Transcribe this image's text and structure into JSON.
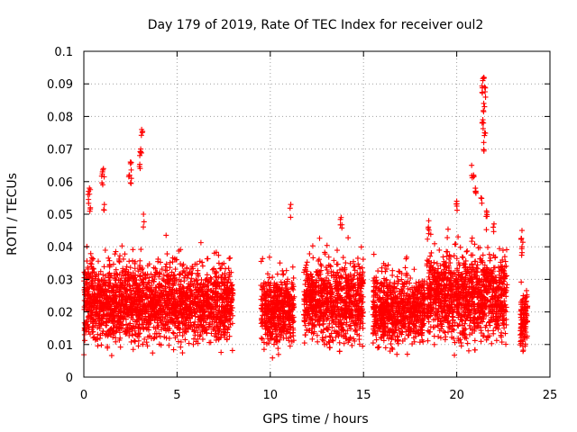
{
  "chart_data": {
    "type": "scatter",
    "title": "Day 179 of 2019, Rate Of TEC Index for receiver oul2",
    "xlabel": "GPS time / hours",
    "ylabel": "ROTI / TECUs",
    "xlim": [
      0,
      25
    ],
    "ylim": [
      0,
      0.1
    ],
    "xticks": [
      "0",
      "5",
      "10",
      "15",
      "20",
      "25"
    ],
    "yticks": [
      "0",
      "0.01",
      "0.02",
      "0.03",
      "0.04",
      "0.05",
      "0.06",
      "0.07",
      "0.08",
      "0.09",
      "0.1"
    ],
    "grid": true,
    "marker": "+",
    "series": [
      {
        "name": "ROTI",
        "color": "#ff0000",
        "segments": [
          {
            "t0": 0.0,
            "t1": 8.0,
            "base": 0.015,
            "spread": 0.018
          },
          {
            "t0": 9.5,
            "t1": 11.3,
            "base": 0.014,
            "spread": 0.016
          },
          {
            "t0": 11.8,
            "t1": 15.0,
            "base": 0.016,
            "spread": 0.018
          },
          {
            "t0": 15.5,
            "t1": 18.3,
            "base": 0.014,
            "spread": 0.016
          },
          {
            "t0": 18.4,
            "t1": 22.7,
            "base": 0.017,
            "spread": 0.02
          },
          {
            "t0": 23.4,
            "t1": 23.8,
            "base": 0.012,
            "spread": 0.012
          }
        ],
        "peaks": [
          {
            "x": 0.25,
            "y": 0.057
          },
          {
            "x": 0.3,
            "y": 0.058
          },
          {
            "x": 0.35,
            "y": 0.052
          },
          {
            "x": 1.0,
            "y": 0.063
          },
          {
            "x": 1.05,
            "y": 0.064
          },
          {
            "x": 1.1,
            "y": 0.053
          },
          {
            "x": 2.45,
            "y": 0.062
          },
          {
            "x": 2.5,
            "y": 0.066
          },
          {
            "x": 2.55,
            "y": 0.061
          },
          {
            "x": 3.0,
            "y": 0.068
          },
          {
            "x": 3.05,
            "y": 0.07
          },
          {
            "x": 3.1,
            "y": 0.076
          },
          {
            "x": 3.2,
            "y": 0.05
          },
          {
            "x": 11.1,
            "y": 0.053
          },
          {
            "x": 13.8,
            "y": 0.049
          },
          {
            "x": 18.5,
            "y": 0.048
          },
          {
            "x": 20.0,
            "y": 0.054
          },
          {
            "x": 20.8,
            "y": 0.065
          },
          {
            "x": 20.9,
            "y": 0.062
          },
          {
            "x": 21.0,
            "y": 0.058
          },
          {
            "x": 21.3,
            "y": 0.055
          },
          {
            "x": 21.4,
            "y": 0.091
          },
          {
            "x": 21.45,
            "y": 0.092
          },
          {
            "x": 21.5,
            "y": 0.089
          },
          {
            "x": 21.45,
            "y": 0.084
          },
          {
            "x": 21.4,
            "y": 0.079
          },
          {
            "x": 21.5,
            "y": 0.075
          },
          {
            "x": 21.45,
            "y": 0.072
          },
          {
            "x": 21.6,
            "y": 0.051
          },
          {
            "x": 22.0,
            "y": 0.047
          },
          {
            "x": 23.5,
            "y": 0.045
          },
          {
            "x": 23.5,
            "y": 0.04
          }
        ]
      }
    ]
  }
}
